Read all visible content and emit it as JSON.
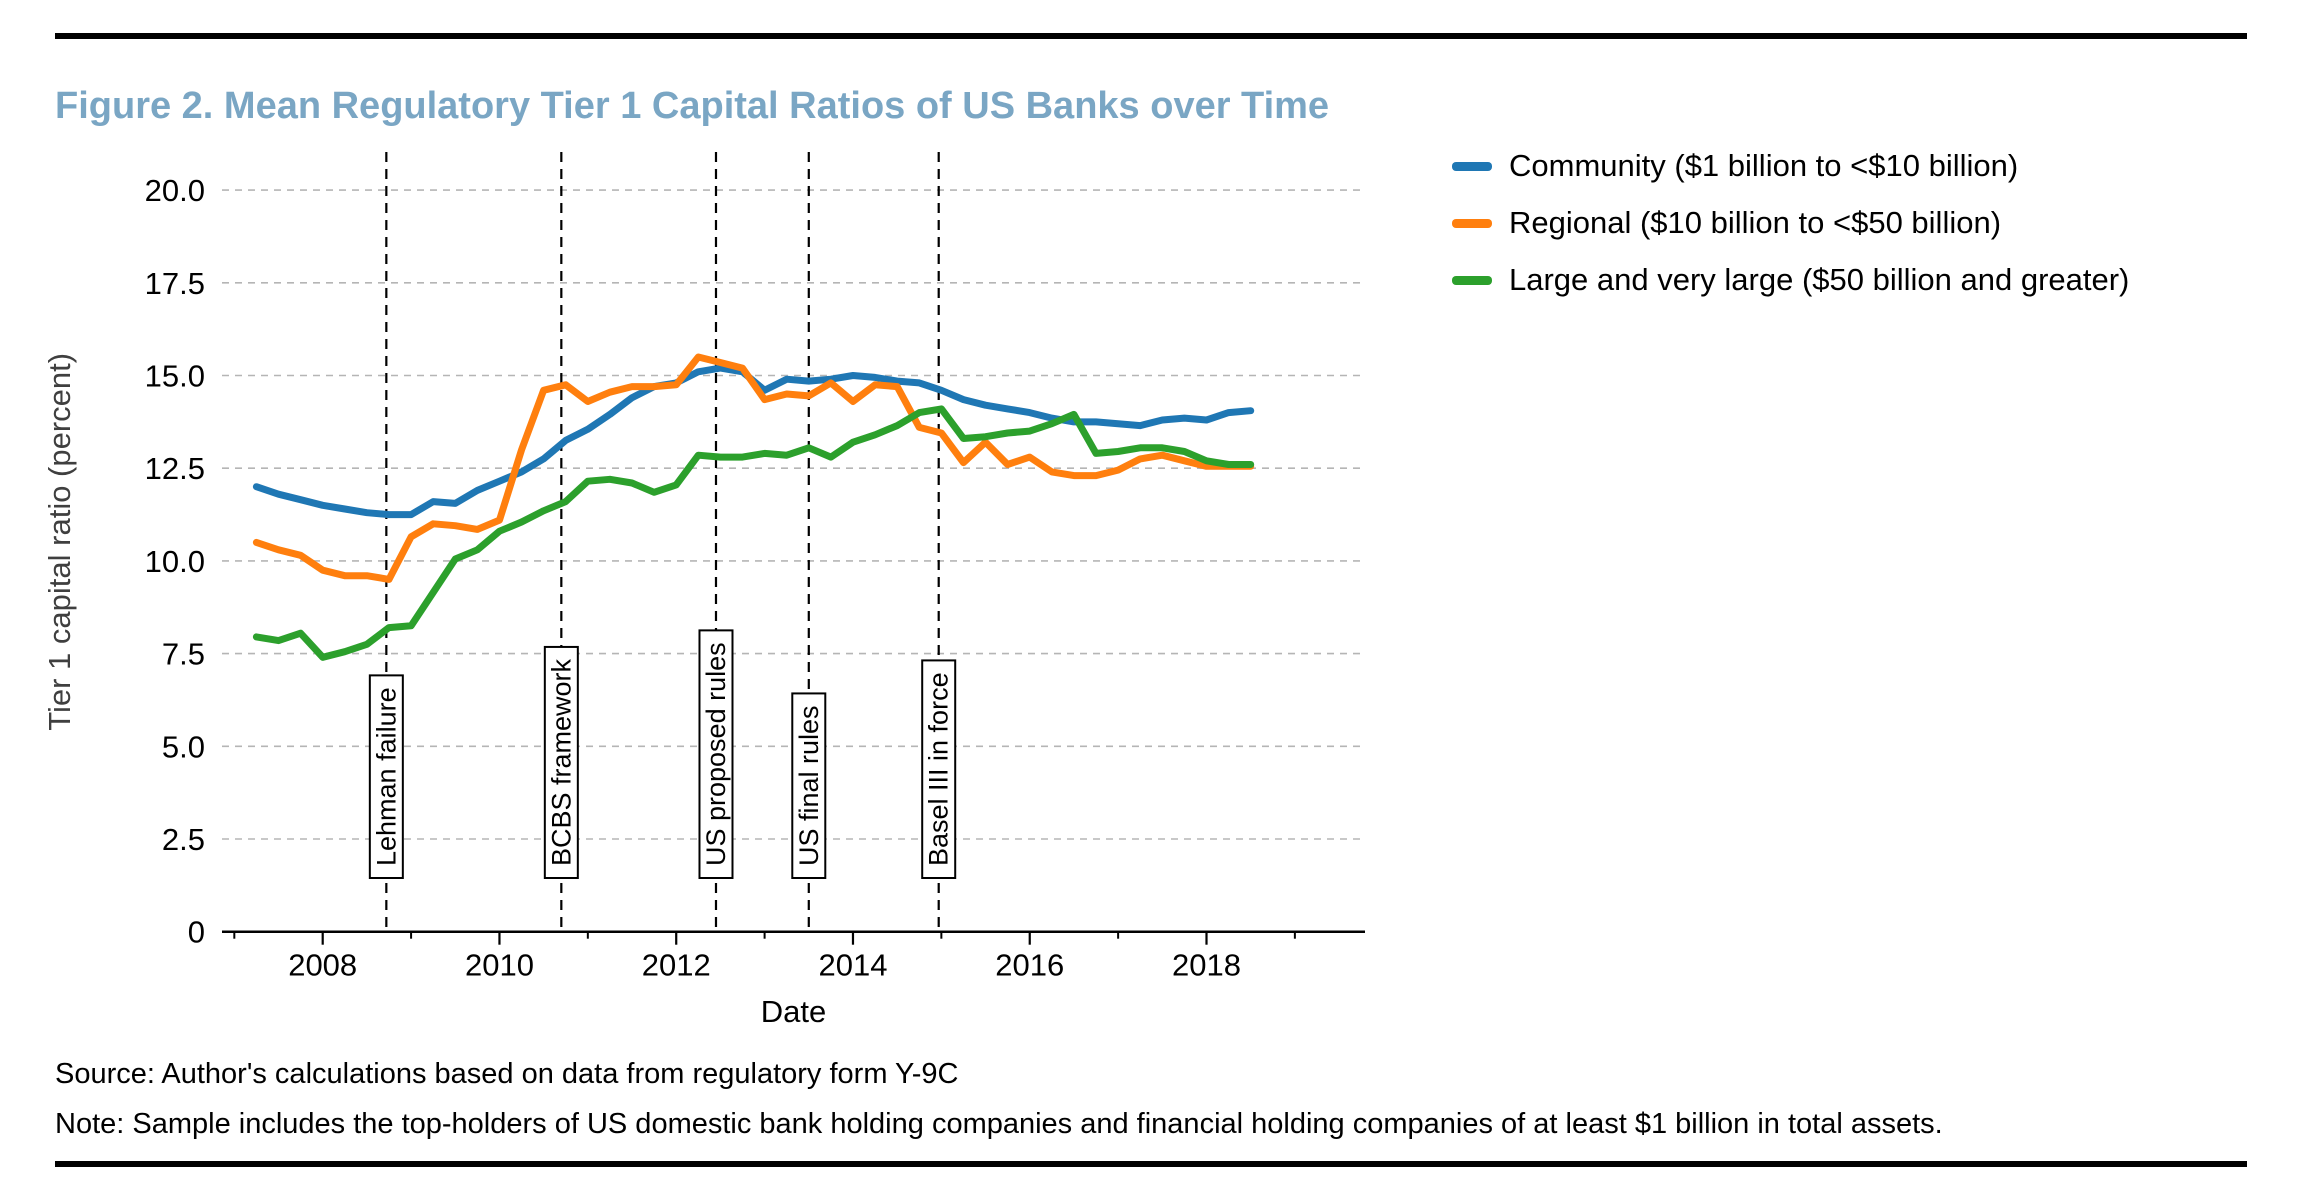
{
  "title": "Figure 2. Mean Regulatory Tier 1 Capital Ratios of US Banks over Time",
  "source_line": "Source: Author's calculations based on data from regulatory form Y-9C",
  "note_line": "Note: Sample includes the top-holders of US domestic bank holding companies and financial holding companies of at least $1 billion in total assets.",
  "colors": {
    "title_text": "#7aa6c4",
    "community": "#1f77b4",
    "regional": "#ff7f0e",
    "large": "#2ca02c",
    "grid": "#b5b5b5",
    "event_line": "#000000",
    "axis": "#000000",
    "ylabel_text": "#3f3f3f"
  },
  "chart_data": {
    "type": "line",
    "title": "",
    "xlabel": "Date",
    "ylabel": "Tier 1 capital ratio (percent)",
    "grid": "horizontal-dashed",
    "legend_position": "outside-upper-right",
    "xlim": [
      2006.85,
      2019.8
    ],
    "ylim": [
      0,
      21
    ],
    "x_ticks": [
      2008,
      2010,
      2012,
      2014,
      2016,
      2018
    ],
    "x_minor_ticks": [
      2007,
      2009,
      2011,
      2013,
      2015,
      2017,
      2019
    ],
    "y_ticks": [
      0,
      2.5,
      5,
      7.5,
      10,
      12.5,
      15,
      17.5,
      20
    ],
    "y_tick_labels": [
      "0",
      "2.5",
      "5.0",
      "7.5",
      "10.0",
      "12.5",
      "15.0",
      "17.5",
      "20.0"
    ],
    "x": [
      2007.25,
      2007.5,
      2007.75,
      2008.0,
      2008.25,
      2008.5,
      2008.75,
      2009.0,
      2009.25,
      2009.5,
      2009.75,
      2010.0,
      2010.25,
      2010.5,
      2010.75,
      2011.0,
      2011.25,
      2011.5,
      2011.75,
      2012.0,
      2012.25,
      2012.5,
      2012.75,
      2013.0,
      2013.25,
      2013.5,
      2013.75,
      2014.0,
      2014.25,
      2014.5,
      2014.75,
      2015.0,
      2015.25,
      2015.5,
      2015.75,
      2016.0,
      2016.25,
      2016.5,
      2016.75,
      2017.0,
      2017.25,
      2017.5,
      2017.75,
      2018.0,
      2018.25,
      2018.5
    ],
    "series": [
      {
        "name": "Community ($1 billion to <$10 billion)",
        "color_key": "community",
        "values": [
          12.0,
          11.8,
          11.65,
          11.5,
          11.4,
          11.3,
          11.25,
          11.25,
          11.6,
          11.55,
          11.9,
          12.15,
          12.4,
          12.75,
          13.25,
          13.55,
          13.95,
          14.4,
          14.7,
          14.8,
          15.1,
          15.2,
          15.1,
          14.6,
          14.9,
          14.85,
          14.9,
          15.0,
          14.95,
          14.85,
          14.8,
          14.6,
          14.35,
          14.2,
          14.1,
          14.0,
          13.85,
          13.75,
          13.75,
          13.7,
          13.65,
          13.8,
          13.85,
          13.8,
          14.0,
          14.05
        ]
      },
      {
        "name": "Regional ($10 billion to <$50 billion)",
        "color_key": "regional",
        "values": [
          10.5,
          10.3,
          10.15,
          9.75,
          9.6,
          9.6,
          9.5,
          10.65,
          11.0,
          10.95,
          10.85,
          11.1,
          13.0,
          14.6,
          14.75,
          14.3,
          14.55,
          14.7,
          14.7,
          14.75,
          15.5,
          15.35,
          15.2,
          14.35,
          14.5,
          14.45,
          14.8,
          14.3,
          14.75,
          14.7,
          13.6,
          13.45,
          12.65,
          13.2,
          12.6,
          12.8,
          12.4,
          12.3,
          12.3,
          12.45,
          12.75,
          12.85,
          12.7,
          12.55,
          12.55,
          12.55
        ]
      },
      {
        "name": "Large and very large ($50 billion and greater)",
        "color_key": "large",
        "values": [
          7.95,
          7.85,
          8.05,
          7.4,
          7.55,
          7.75,
          8.2,
          8.25,
          9.15,
          10.05,
          10.3,
          10.8,
          11.05,
          11.35,
          11.6,
          12.15,
          12.2,
          12.1,
          11.85,
          12.05,
          12.85,
          12.8,
          12.8,
          12.9,
          12.85,
          13.05,
          12.8,
          13.2,
          13.4,
          13.65,
          14.0,
          14.1,
          13.3,
          13.35,
          13.45,
          13.5,
          13.7,
          13.95,
          12.9,
          12.95,
          13.05,
          13.05,
          12.95,
          12.7,
          12.6,
          12.6
        ]
      }
    ],
    "event_lines": [
      {
        "label": "Lehman failure",
        "x": 2008.72
      },
      {
        "label": "BCBS framework",
        "x": 2010.7
      },
      {
        "label": "US proposed rules",
        "x": 2012.45
      },
      {
        "label": "US final rules",
        "x": 2013.5
      },
      {
        "label": "Basel III in force",
        "x": 2014.97
      }
    ]
  }
}
